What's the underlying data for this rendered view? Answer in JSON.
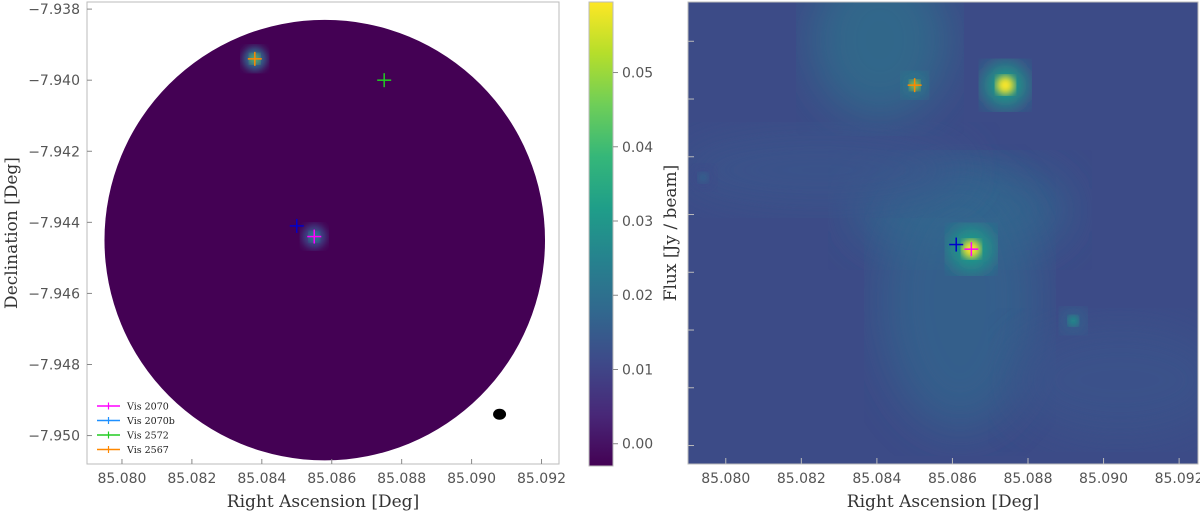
{
  "chart_data": [
    {
      "type": "heatmap",
      "panel": "left",
      "xlabel": "Right Ascension [Deg]",
      "ylabel": "Declination [Deg]",
      "xlim": [
        85.079,
        85.0925
      ],
      "ylim": [
        -7.9508,
        -7.9378
      ],
      "xticks": [
        85.08,
        85.082,
        85.084,
        85.086,
        85.088,
        85.09,
        85.092
      ],
      "yticks": [
        -7.938,
        -7.94,
        -7.942,
        -7.944,
        -7.946,
        -7.948,
        -7.95
      ],
      "xtick_labels": [
        "85.080",
        "85.082",
        "85.084",
        "85.086",
        "85.088",
        "85.090",
        "85.092"
      ],
      "ytick_labels": [
        "−7.938",
        "−7.940",
        "−7.942",
        "−7.944",
        "−7.946",
        "−7.948",
        "−7.950"
      ],
      "field_center": [
        85.0858,
        -7.9445
      ],
      "field_radius_ra": 0.0063,
      "sources": [
        {
          "x": 85.0838,
          "y": -7.9394,
          "peak": 0.045
        },
        {
          "x": 85.0855,
          "y": -7.9444,
          "peak": 0.035
        }
      ],
      "markers": [
        {
          "name": "Vis 2070",
          "color": "#ff00ff",
          "x": 85.0855,
          "y": -7.9444
        },
        {
          "name": "Vis 2070b",
          "color": "#0000cc",
          "x": 85.085,
          "y": -7.9441
        },
        {
          "name": "Vis 2572",
          "color": "#22cc22",
          "x": 85.0875,
          "y": -7.94
        },
        {
          "name": "Vis 2567",
          "color": "#ff8800",
          "x": 85.0838,
          "y": -7.9394
        }
      ],
      "legend": {
        "placement": "lower-left",
        "entries": [
          {
            "label": "Vis 2070",
            "color": "#ff00ff"
          },
          {
            "label": "Vis 2070b",
            "color": "#1e90ff"
          },
          {
            "label": "Vis 2572",
            "color": "#22cc22"
          },
          {
            "label": "Vis 2567",
            "color": "#ff8800"
          }
        ]
      },
      "beam": {
        "x": 85.0908,
        "y": -7.9494
      }
    },
    {
      "type": "colorbar",
      "label": "Flux [Jy / beam]",
      "range": [
        -0.003,
        0.0595
      ],
      "ticks": [
        0.0,
        0.01,
        0.02,
        0.03,
        0.04,
        0.05
      ],
      "tick_labels": [
        "0.00",
        "0.01",
        "0.02",
        "0.03",
        "0.04",
        "0.05"
      ],
      "colormap": [
        "#440154",
        "#482878",
        "#3e4989",
        "#31688e",
        "#26828e",
        "#1f9e89",
        "#35b779",
        "#6ece58",
        "#b5de2b",
        "#fde725"
      ]
    },
    {
      "type": "heatmap",
      "panel": "right",
      "xlabel": "Right Ascension [Deg]",
      "xlim": [
        85.079,
        85.0925
      ],
      "xticks": [
        85.08,
        85.082,
        85.084,
        85.086,
        85.088,
        85.09,
        85.092
      ],
      "xtick_labels": [
        "85.080",
        "85.082",
        "85.084",
        "85.086",
        "85.088",
        "85.090",
        "85.092"
      ],
      "sources": [
        {
          "x": 85.085,
          "y": 0.82,
          "peak": 0.05
        },
        {
          "x": 85.0874,
          "y": 0.82,
          "peak": 0.058
        },
        {
          "x": 85.0865,
          "y": 0.465,
          "peak": 0.058
        },
        {
          "x": 85.0892,
          "y": 0.31,
          "peak": 0.03
        },
        {
          "x": 85.0794,
          "y": 0.62,
          "peak": 0.015
        }
      ],
      "markers": [
        {
          "name": "Vis 2070",
          "color": "#ff00ff",
          "x": 85.0865,
          "y": 0.465
        },
        {
          "name": "Vis 2070b",
          "color": "#0000cc",
          "x": 85.0861,
          "y": 0.475
        },
        {
          "name": "Vis 2567",
          "color": "#ff8800",
          "x": 85.085,
          "y": 0.82
        }
      ]
    }
  ]
}
